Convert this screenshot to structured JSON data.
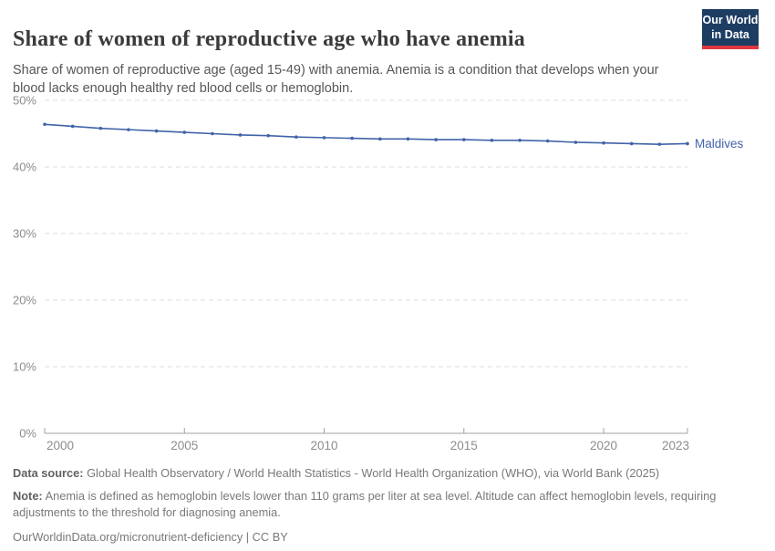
{
  "header": {
    "title": "Share of women of reproductive age who have anemia",
    "subtitle": "Share of women of reproductive age (aged 15-49) with anemia. Anemia is a condition that develops when your blood lacks enough healthy red blood cells or hemoglobin.",
    "logo": {
      "line1": "Our World",
      "line2": "in Data"
    }
  },
  "chart_data": {
    "type": "line",
    "title": "Share of women of reproductive age who have anemia",
    "x": [
      2000,
      2001,
      2002,
      2003,
      2004,
      2005,
      2006,
      2007,
      2008,
      2009,
      2010,
      2011,
      2012,
      2013,
      2014,
      2015,
      2016,
      2017,
      2018,
      2019,
      2020,
      2021,
      2022,
      2023
    ],
    "series": [
      {
        "name": "Maldives",
        "color": "#4063a8",
        "values": [
          46.4,
          46.1,
          45.8,
          45.6,
          45.4,
          45.2,
          45.0,
          44.8,
          44.7,
          44.5,
          44.4,
          44.3,
          44.2,
          44.2,
          44.1,
          44.1,
          44.0,
          44.0,
          43.9,
          43.7,
          43.6,
          43.5,
          43.4,
          43.5
        ]
      }
    ],
    "ylim": [
      0,
      50
    ],
    "yticks": [
      0,
      10,
      20,
      30,
      40,
      50
    ],
    "ytick_suffix": "%",
    "xticks": [
      2000,
      2005,
      2010,
      2015,
      2020,
      2023
    ],
    "grid": "dashed-horizontal",
    "legend": "end-of-line-label"
  },
  "footer": {
    "data_source_label": "Data source:",
    "data_source": "Global Health Observatory / World Health Statistics - World Health Organization (WHO), via World Bank (2025)",
    "note_label": "Note:",
    "note": "Anemia is defined as hemoglobin levels lower than 110 grams per liter at sea level. Altitude can affect hemoglobin levels, requiring adjustments to the threshold for diagnosing anemia.",
    "link": "OurWorldinData.org/micronutrient-deficiency | CC BY"
  },
  "colors": {
    "line": "#4063a8",
    "logo_bg": "#1d3d63",
    "logo_accent": "#e0373f",
    "grid": "#dcdcdc",
    "axis": "#a1a1a1",
    "tick_label": "#8c8c8c",
    "title": "#3b3b3b",
    "subtitle": "#565656",
    "footer": "#797979"
  }
}
